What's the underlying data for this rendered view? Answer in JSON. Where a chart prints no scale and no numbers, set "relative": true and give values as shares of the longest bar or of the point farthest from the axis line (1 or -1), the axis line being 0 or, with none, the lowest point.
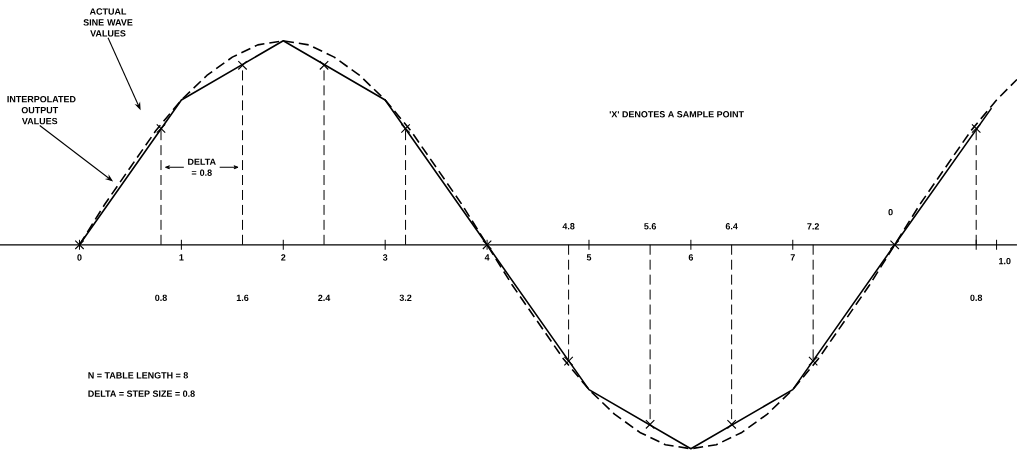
{
  "chart_data": {
    "type": "line",
    "relative": true,
    "xlim": [
      -0.78,
      9.2
    ],
    "xticks": [
      0,
      1,
      2,
      3,
      4,
      5,
      6,
      7,
      {
        "value": 8.8,
        "label": null
      },
      {
        "value": 9,
        "label": null
      }
    ],
    "x2lim": [
      -0.78,
      9.2
    ],
    "x2ticks": [
      {
        "value": 4.8,
        "label": "4.8"
      },
      {
        "value": 5.6,
        "label": "5.6"
      },
      {
        "value": 6.4,
        "label": "6.4"
      },
      {
        "value": 7.2,
        "label": "7.2"
      }
    ],
    "series": [
      {
        "color": "#000000",
        "line_style": "solid",
        "x": [
          0,
          1,
          2,
          3,
          4,
          5,
          6,
          7,
          8,
          8.95
        ],
        "values": [
          0,
          0.71,
          1,
          0.71,
          0,
          -0.71,
          -1,
          -0.71,
          0,
          0.67
        ]
      },
      {
        "color": "#000000",
        "line_style": "dashed",
        "x": [
          0,
          0.25,
          0.5,
          0.75,
          1,
          1.25,
          1.5,
          1.75,
          2,
          2.25,
          2.5,
          2.75,
          3,
          3.25,
          3.5,
          3.75,
          4,
          4.25,
          4.5,
          4.75,
          5,
          5.25,
          5.5,
          5.75,
          6,
          6.25,
          6.5,
          6.75,
          7,
          7.25,
          7.5,
          7.75,
          8,
          8.25,
          8.5,
          8.75,
          9,
          9.2
        ],
        "values": [
          0,
          0.2,
          0.38,
          0.56,
          0.71,
          0.83,
          0.92,
          0.98,
          1,
          0.98,
          0.92,
          0.83,
          0.71,
          0.56,
          0.38,
          0.2,
          0,
          -0.2,
          -0.38,
          -0.56,
          -0.71,
          -0.83,
          -0.92,
          -0.98,
          -1,
          -0.98,
          -0.92,
          -0.83,
          -0.71,
          -0.56,
          -0.38,
          -0.2,
          0,
          0.2,
          0.38,
          0.56,
          0.71,
          0.81
        ]
      },
      {
        "type": "lollipop",
        "color": "#000000",
        "line_style": "dashed",
        "marker": "cross",
        "x": [
          0,
          0.8,
          1.6,
          2.4,
          3.2,
          4,
          4.8,
          5.6,
          6.4,
          7.2,
          8,
          8.8
        ],
        "values": [
          0,
          0.57,
          0.88,
          0.88,
          0.57,
          0,
          -0.57,
          -0.88,
          -0.88,
          -0.57,
          0,
          0.57
        ]
      }
    ],
    "annotations": [
      "ACTUAL SINE WAVE VALUES",
      "INTERPOLATED OUTPUT VALUES",
      "DELTA = 0.8",
      "'X' DENOTES A SAMPLE POINT",
      "N = TABLE LENGTH = 8",
      "DELTA = STEP SIZE = 0.8",
      "0.8",
      "1.6",
      "2.4",
      "3.2",
      "0",
      "0.8",
      "1.0"
    ]
  }
}
